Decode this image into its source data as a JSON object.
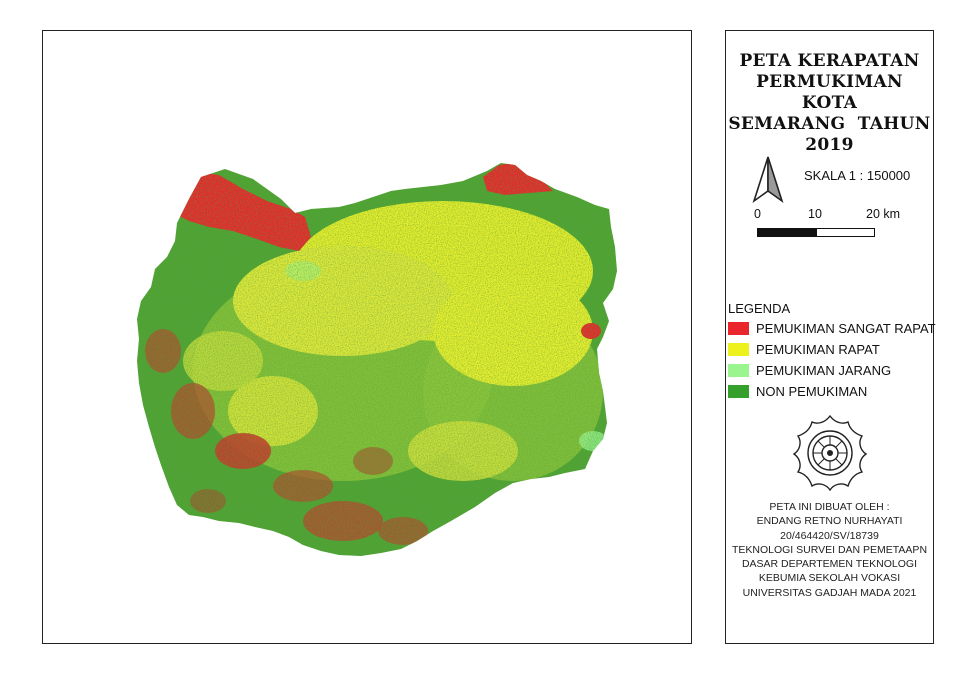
{
  "map": {
    "region": "Kota Semarang",
    "classes": [
      {
        "label": "PEMUKIMAN SANGAT RAPAT",
        "color": "#e8262b"
      },
      {
        "label": "PEMUKIMAN RAPAT",
        "color": "#eef21c"
      },
      {
        "label": "PEMUKIMAN JARANG",
        "color": "#9af58f"
      },
      {
        "label": "NON PEMUKIMAN",
        "color": "#35a02c"
      }
    ]
  },
  "panel": {
    "title_lines": [
      "PETA KERAPATAN",
      "PERMUKIMAN KOTA",
      "SEMARANG  TAHUN",
      "2019"
    ],
    "scale_text": "SKALA 1 : 150000",
    "scale_labels": [
      "0",
      "10",
      "20 km"
    ],
    "legend_title": "LEGENDA",
    "credits": [
      "PETA INI DIBUAT OLEH :",
      "ENDANG RETNO NURHAYATI",
      "20/464420/SV/18739",
      "TEKNOLOGI SURVEI DAN PEMETAAPN",
      "DASAR DEPARTEMEN TEKNOLOGI",
      "KEBUMIA SEKOLAH VOKASI",
      "UNIVERSITAS GADJAH MADA 2021"
    ],
    "logo_icon": "ugm-seal-icon",
    "north_icon": "north-arrow-icon"
  }
}
